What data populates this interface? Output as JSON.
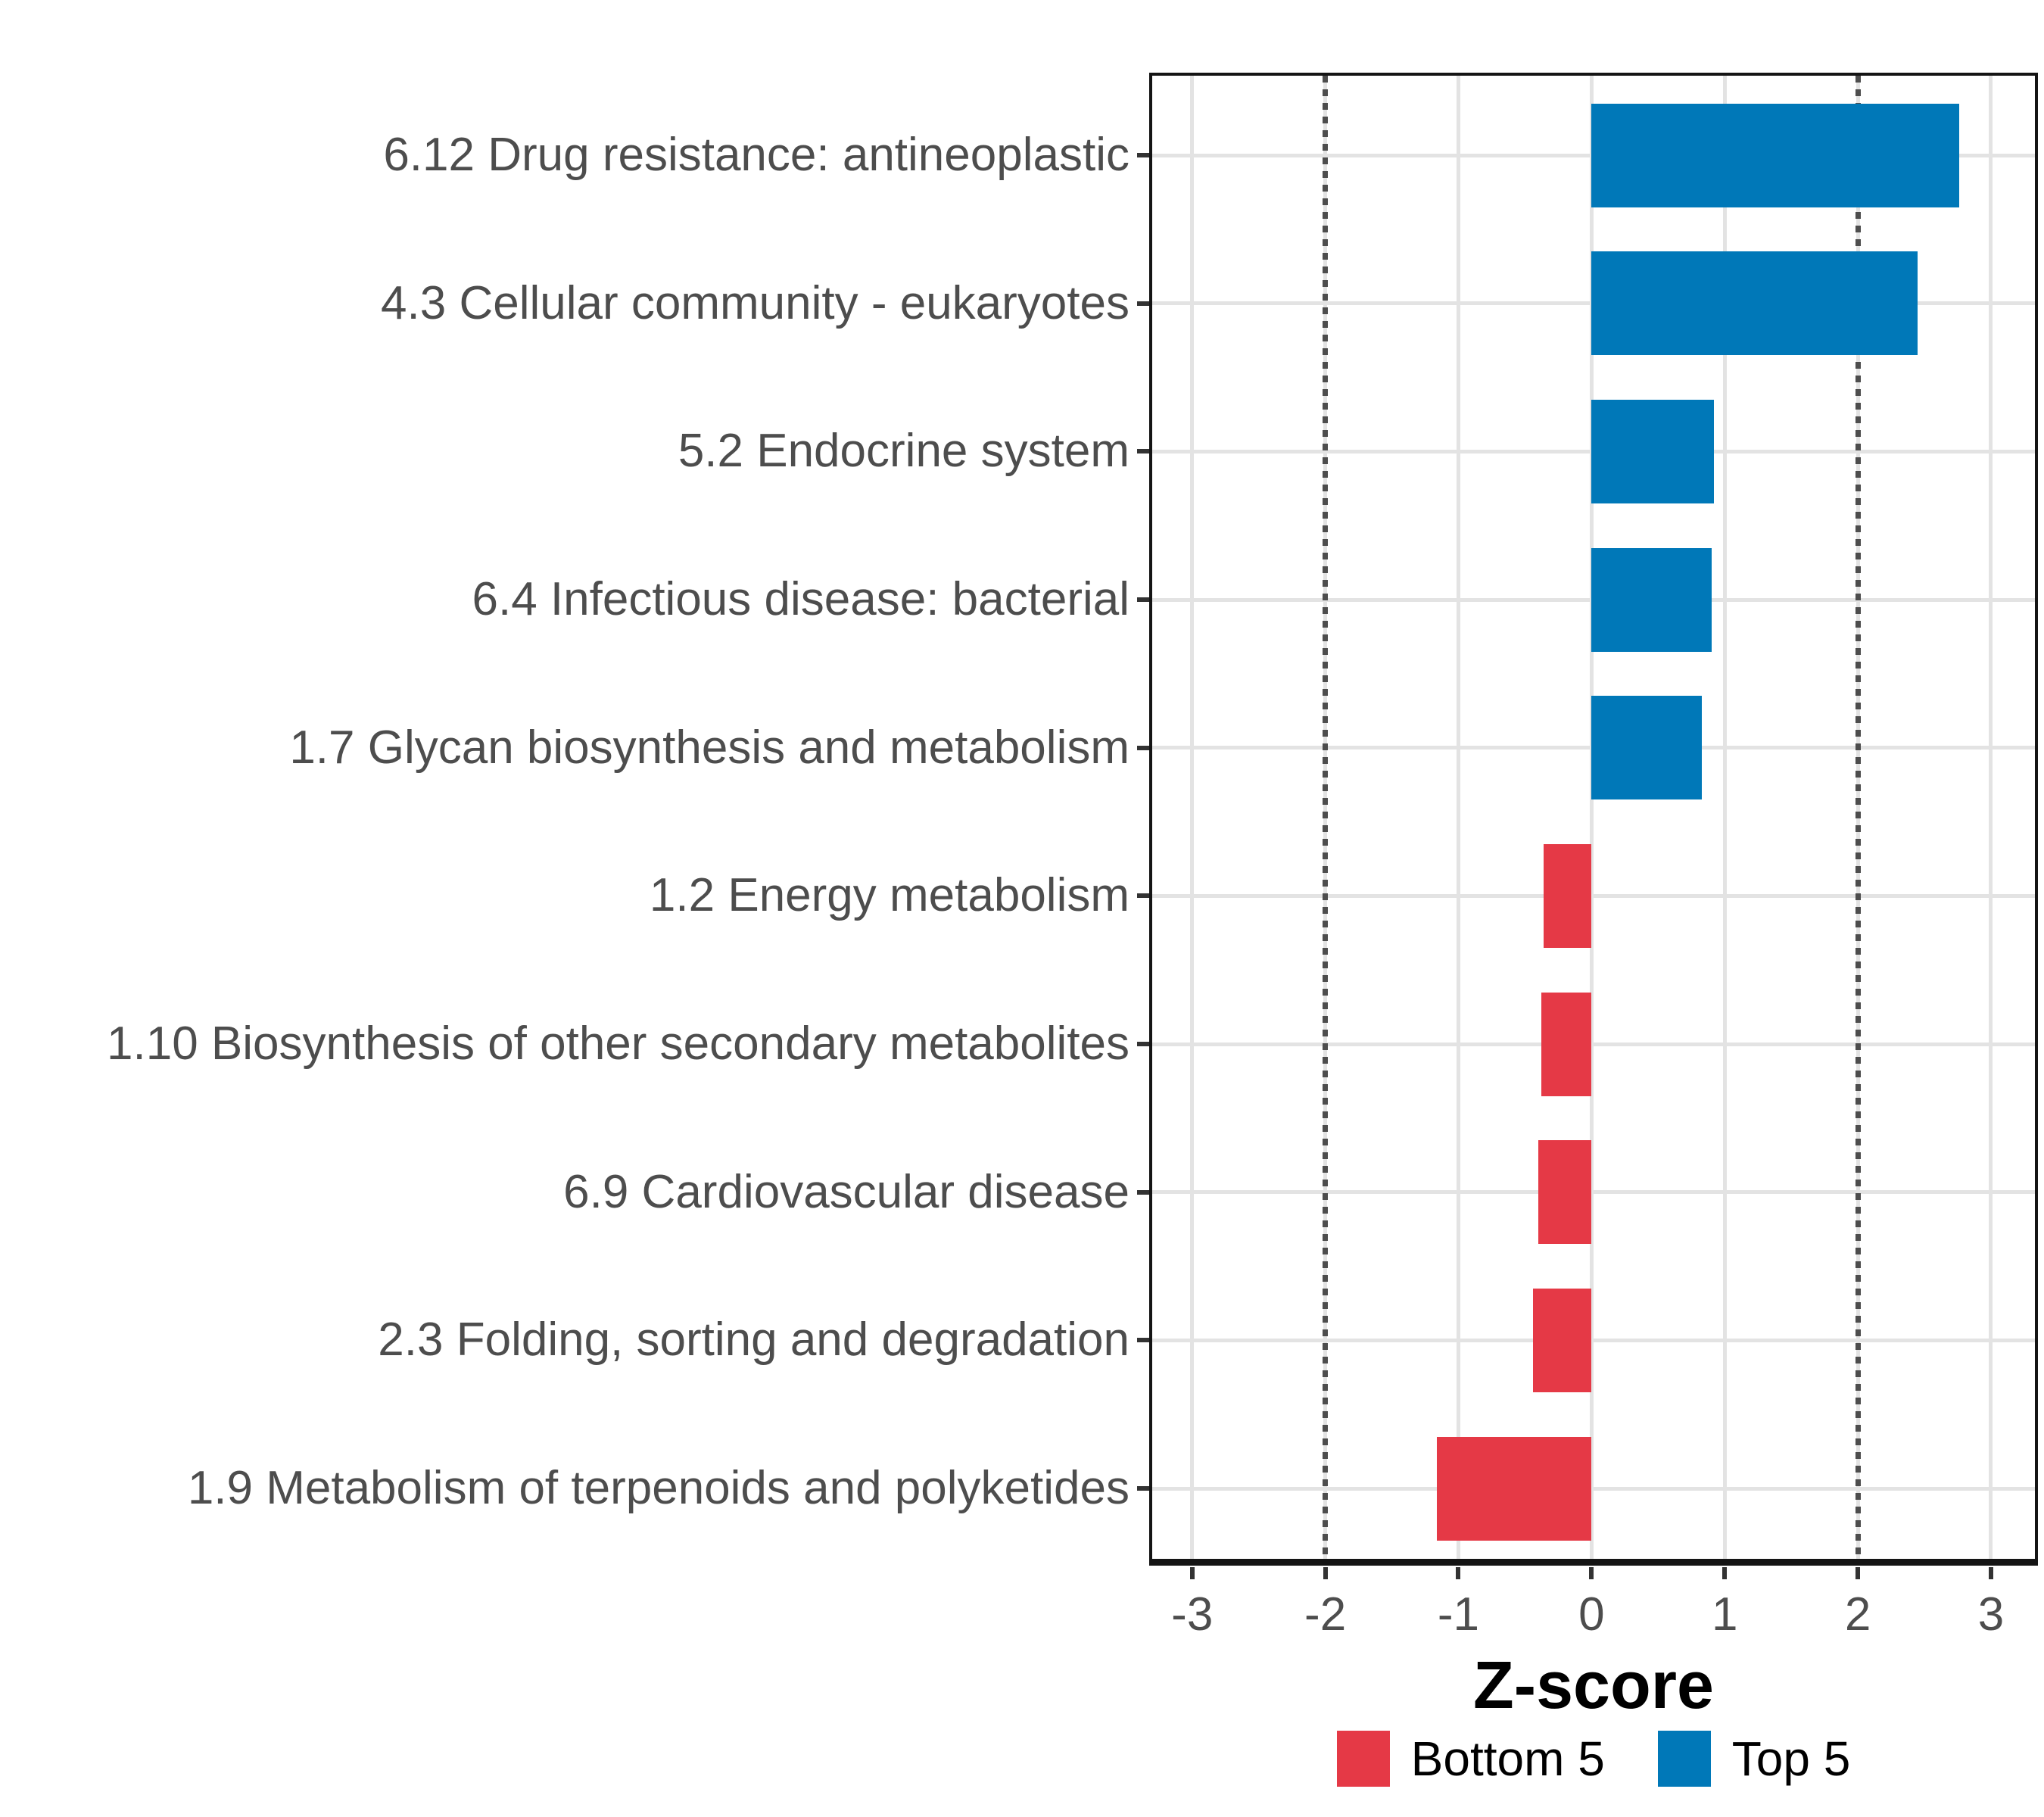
{
  "chart_data": {
    "type": "bar",
    "orientation": "horizontal",
    "title": "",
    "xlabel": "Z-score",
    "ylabel": "",
    "categories": [
      "6.12 Drug resistance: antineoplastic",
      "4.3 Cellular community - eukaryotes",
      "5.2 Endocrine system",
      "6.4 Infectious disease: bacterial",
      "1.7 Glycan biosynthesis and metabolism",
      "1.2 Energy metabolism",
      "1.10 Biosynthesis of other secondary metabolites",
      "6.9 Cardiovascular disease",
      "2.3 Folding, sorting and degradation",
      "1.9 Metabolism of terpenoids and polyketides"
    ],
    "values": [
      2.76,
      2.45,
      0.92,
      0.9,
      0.83,
      -0.36,
      -0.38,
      -0.4,
      -0.44,
      -1.16
    ],
    "groups": [
      "Top 5",
      "Top 5",
      "Top 5",
      "Top 5",
      "Top 5",
      "Bottom 5",
      "Bottom 5",
      "Bottom 5",
      "Bottom 5",
      "Bottom 5"
    ],
    "series": [
      {
        "name": "Top 5",
        "color": "#0078B8",
        "values": [
          2.76,
          2.45,
          0.92,
          0.9,
          0.83
        ]
      },
      {
        "name": "Bottom 5",
        "color": "#E53946",
        "values": [
          -0.36,
          -0.38,
          -0.4,
          -0.44,
          -1.16
        ]
      }
    ],
    "colors": {
      "Top 5": "#0078B8",
      "Bottom 5": "#E53946"
    },
    "xlim": [
      -3.3,
      3.33
    ],
    "x_ticks": [
      {
        "value": -3,
        "label": "-3"
      },
      {
        "value": -2,
        "label": "-2"
      },
      {
        "value": -1,
        "label": "-1"
      },
      {
        "value": 0,
        "label": "0"
      },
      {
        "value": 1,
        "label": "1"
      },
      {
        "value": 2,
        "label": "2"
      },
      {
        "value": 3,
        "label": "3"
      }
    ],
    "reference_lines": [
      {
        "value": -2,
        "style": "dotted",
        "color": "#4d4d4d"
      },
      {
        "value": 2,
        "style": "dotted",
        "color": "#4d4d4d"
      }
    ],
    "grid": "major-only",
    "panel_border": true,
    "legend": {
      "position": "bottom",
      "items": [
        {
          "label": "Bottom 5",
          "color": "#E53946"
        },
        {
          "label": "Top 5",
          "color": "#0078B8"
        }
      ]
    },
    "style": {
      "grid_color": "#e3e3e3",
      "axis_text_color": "#4d4d4d",
      "tick_color": "#333333",
      "border_color": "#141414"
    }
  }
}
